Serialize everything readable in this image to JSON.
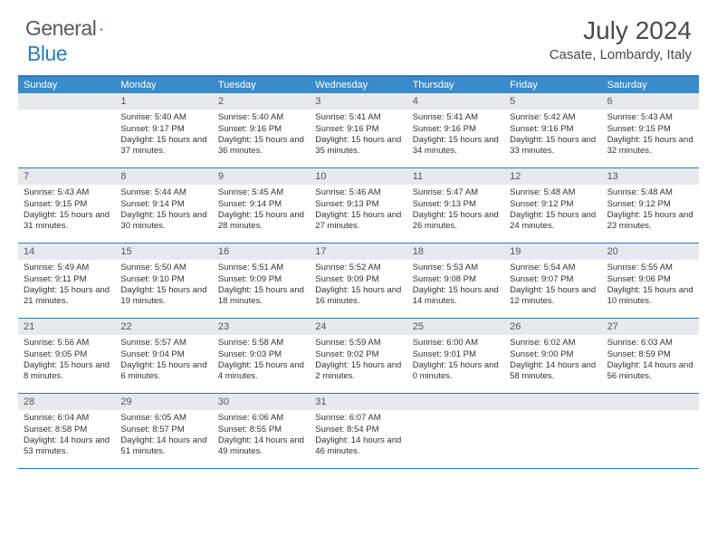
{
  "logo": {
    "word1": "General",
    "word2": "Blue"
  },
  "title": "July 2024",
  "location": "Casate, Lombardy, Italy",
  "colors": {
    "header_bar": "#3a8bc9",
    "border": "#2b7cc0",
    "daynum_bg": "#e7e9ec",
    "text": "#333333",
    "logo_gray": "#5a5a5a",
    "logo_blue": "#2b7cc0",
    "white": "#ffffff"
  },
  "weekdays": [
    "Sunday",
    "Monday",
    "Tuesday",
    "Wednesday",
    "Thursday",
    "Friday",
    "Saturday"
  ],
  "weeks": [
    [
      null,
      {
        "n": "1",
        "sr": "Sunrise: 5:40 AM",
        "ss": "Sunset: 9:17 PM",
        "dl": "Daylight: 15 hours and 37 minutes."
      },
      {
        "n": "2",
        "sr": "Sunrise: 5:40 AM",
        "ss": "Sunset: 9:16 PM",
        "dl": "Daylight: 15 hours and 36 minutes."
      },
      {
        "n": "3",
        "sr": "Sunrise: 5:41 AM",
        "ss": "Sunset: 9:16 PM",
        "dl": "Daylight: 15 hours and 35 minutes."
      },
      {
        "n": "4",
        "sr": "Sunrise: 5:41 AM",
        "ss": "Sunset: 9:16 PM",
        "dl": "Daylight: 15 hours and 34 minutes."
      },
      {
        "n": "5",
        "sr": "Sunrise: 5:42 AM",
        "ss": "Sunset: 9:16 PM",
        "dl": "Daylight: 15 hours and 33 minutes."
      },
      {
        "n": "6",
        "sr": "Sunrise: 5:43 AM",
        "ss": "Sunset: 9:15 PM",
        "dl": "Daylight: 15 hours and 32 minutes."
      }
    ],
    [
      {
        "n": "7",
        "sr": "Sunrise: 5:43 AM",
        "ss": "Sunset: 9:15 PM",
        "dl": "Daylight: 15 hours and 31 minutes."
      },
      {
        "n": "8",
        "sr": "Sunrise: 5:44 AM",
        "ss": "Sunset: 9:14 PM",
        "dl": "Daylight: 15 hours and 30 minutes."
      },
      {
        "n": "9",
        "sr": "Sunrise: 5:45 AM",
        "ss": "Sunset: 9:14 PM",
        "dl": "Daylight: 15 hours and 28 minutes."
      },
      {
        "n": "10",
        "sr": "Sunrise: 5:46 AM",
        "ss": "Sunset: 9:13 PM",
        "dl": "Daylight: 15 hours and 27 minutes."
      },
      {
        "n": "11",
        "sr": "Sunrise: 5:47 AM",
        "ss": "Sunset: 9:13 PM",
        "dl": "Daylight: 15 hours and 26 minutes."
      },
      {
        "n": "12",
        "sr": "Sunrise: 5:48 AM",
        "ss": "Sunset: 9:12 PM",
        "dl": "Daylight: 15 hours and 24 minutes."
      },
      {
        "n": "13",
        "sr": "Sunrise: 5:48 AM",
        "ss": "Sunset: 9:12 PM",
        "dl": "Daylight: 15 hours and 23 minutes."
      }
    ],
    [
      {
        "n": "14",
        "sr": "Sunrise: 5:49 AM",
        "ss": "Sunset: 9:11 PM",
        "dl": "Daylight: 15 hours and 21 minutes."
      },
      {
        "n": "15",
        "sr": "Sunrise: 5:50 AM",
        "ss": "Sunset: 9:10 PM",
        "dl": "Daylight: 15 hours and 19 minutes."
      },
      {
        "n": "16",
        "sr": "Sunrise: 5:51 AM",
        "ss": "Sunset: 9:09 PM",
        "dl": "Daylight: 15 hours and 18 minutes."
      },
      {
        "n": "17",
        "sr": "Sunrise: 5:52 AM",
        "ss": "Sunset: 9:09 PM",
        "dl": "Daylight: 15 hours and 16 minutes."
      },
      {
        "n": "18",
        "sr": "Sunrise: 5:53 AM",
        "ss": "Sunset: 9:08 PM",
        "dl": "Daylight: 15 hours and 14 minutes."
      },
      {
        "n": "19",
        "sr": "Sunrise: 5:54 AM",
        "ss": "Sunset: 9:07 PM",
        "dl": "Daylight: 15 hours and 12 minutes."
      },
      {
        "n": "20",
        "sr": "Sunrise: 5:55 AM",
        "ss": "Sunset: 9:06 PM",
        "dl": "Daylight: 15 hours and 10 minutes."
      }
    ],
    [
      {
        "n": "21",
        "sr": "Sunrise: 5:56 AM",
        "ss": "Sunset: 9:05 PM",
        "dl": "Daylight: 15 hours and 8 minutes."
      },
      {
        "n": "22",
        "sr": "Sunrise: 5:57 AM",
        "ss": "Sunset: 9:04 PM",
        "dl": "Daylight: 15 hours and 6 minutes."
      },
      {
        "n": "23",
        "sr": "Sunrise: 5:58 AM",
        "ss": "Sunset: 9:03 PM",
        "dl": "Daylight: 15 hours and 4 minutes."
      },
      {
        "n": "24",
        "sr": "Sunrise: 5:59 AM",
        "ss": "Sunset: 9:02 PM",
        "dl": "Daylight: 15 hours and 2 minutes."
      },
      {
        "n": "25",
        "sr": "Sunrise: 6:00 AM",
        "ss": "Sunset: 9:01 PM",
        "dl": "Daylight: 15 hours and 0 minutes."
      },
      {
        "n": "26",
        "sr": "Sunrise: 6:02 AM",
        "ss": "Sunset: 9:00 PM",
        "dl": "Daylight: 14 hours and 58 minutes."
      },
      {
        "n": "27",
        "sr": "Sunrise: 6:03 AM",
        "ss": "Sunset: 8:59 PM",
        "dl": "Daylight: 14 hours and 56 minutes."
      }
    ],
    [
      {
        "n": "28",
        "sr": "Sunrise: 6:04 AM",
        "ss": "Sunset: 8:58 PM",
        "dl": "Daylight: 14 hours and 53 minutes."
      },
      {
        "n": "29",
        "sr": "Sunrise: 6:05 AM",
        "ss": "Sunset: 8:57 PM",
        "dl": "Daylight: 14 hours and 51 minutes."
      },
      {
        "n": "30",
        "sr": "Sunrise: 6:06 AM",
        "ss": "Sunset: 8:55 PM",
        "dl": "Daylight: 14 hours and 49 minutes."
      },
      {
        "n": "31",
        "sr": "Sunrise: 6:07 AM",
        "ss": "Sunset: 8:54 PM",
        "dl": "Daylight: 14 hours and 46 minutes."
      },
      null,
      null,
      null
    ]
  ]
}
